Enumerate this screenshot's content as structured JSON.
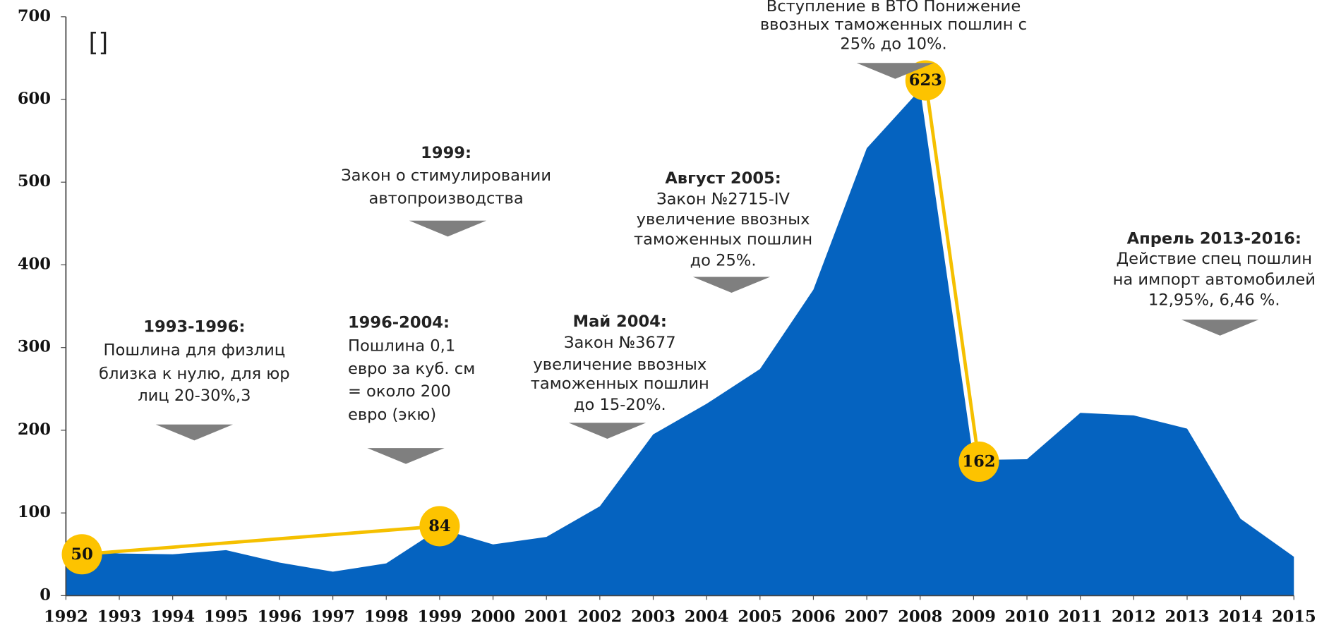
{
  "chart_data": {
    "type": "area",
    "color": "#0563c0",
    "x": [
      1992,
      1993,
      1994,
      1995,
      1996,
      1997,
      1998,
      1999,
      2000,
      2001,
      2002,
      2003,
      2004,
      2005,
      2006,
      2007,
      2008,
      2009,
      2010,
      2011,
      2012,
      2013,
      2014,
      2015
    ],
    "values": [
      56,
      51,
      50,
      55,
      40,
      29,
      39,
      81,
      62,
      71,
      108,
      195,
      232,
      274,
      370,
      541,
      612,
      164,
      165,
      221,
      218,
      202,
      93,
      47
    ],
    "xlim": [
      1992,
      2015
    ],
    "xticks": [
      1992,
      1993,
      1994,
      1995,
      1996,
      1997,
      1998,
      1999,
      2000,
      2001,
      2002,
      2003,
      2004,
      2005,
      2006,
      2007,
      2008,
      2009,
      2010,
      2011,
      2012,
      2013,
      2014,
      2015
    ],
    "ylim": [
      0,
      700
    ],
    "yticks": [
      0,
      100,
      200,
      300,
      400,
      500,
      600,
      700
    ],
    "marker_color": "#fdc300",
    "marker_line_color": "#f5c000",
    "markers": [
      {
        "x": [
          1992.3,
          1999
        ],
        "values": [
          50,
          84
        ]
      },
      {
        "x": [
          2008.1,
          2009.1
        ],
        "values": [
          623,
          162
        ]
      }
    ],
    "note": "[]",
    "annotations": [
      {
        "title": "1993-1996:",
        "lines": [
          "Пошлина для  физлиц",
          "близка к нулю, для юр",
          "лиц 20-30%,3"
        ]
      },
      {
        "title": "1996-2004:",
        "lines": [
          "Пошлина  0,1",
          "евро за куб. см",
          "= около 200",
          "евро (экю)"
        ]
      },
      {
        "title": "1999:",
        "lines": [
          "Закон о стимулировании",
          "автопроизводства"
        ]
      },
      {
        "title": "Май 2004:",
        "lines": [
          "Закон №3677",
          "увеличение ввозных",
          "таможенных пошлин",
          "до 15-20%."
        ]
      },
      {
        "title": "Август 2005:",
        "lines": [
          "Закон №2715-IV",
          "увеличение ввозных",
          "таможенных пошлин",
          "до 25%."
        ]
      },
      {
        "lines": [
          "Вступление в ВТО Понижение",
          "ввозных таможенных  пошлин с",
          "25% до 10%."
        ]
      },
      {
        "title": "Апрель 2013-2016:",
        "lines": [
          "Действие спец пошлин",
          "на импорт автомобилей",
          "12,95%, 6,46 %."
        ]
      }
    ]
  }
}
